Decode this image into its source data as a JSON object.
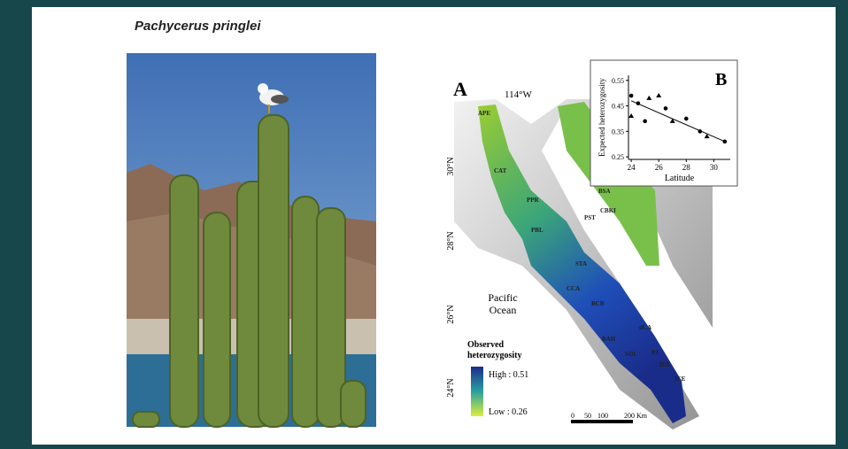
{
  "title": "Pachycerus pringlei",
  "map": {
    "panel": "A",
    "longitude": "114°W",
    "latitudes": [
      "30°N",
      "28°N",
      "26°N",
      "24°N"
    ],
    "ocean": "Pacific Ocean",
    "legend": {
      "title": "Observed heterozygosity",
      "high": "High : 0.51",
      "low": "Low : 0.26"
    },
    "scale": [
      "0",
      "50",
      "100",
      "200 Km"
    ],
    "sites": [
      "APE",
      "CAT",
      "PPR",
      "PBL",
      "BSA",
      "CBKI",
      "PST",
      "STA",
      "CCA",
      "BCB",
      "dCA",
      "BAH",
      "SOL",
      "PJ",
      "IES",
      "ICE"
    ]
  },
  "inset": {
    "panel": "B",
    "x_label": "Latitude",
    "y_label": "Expected heterozygosity",
    "xlim": [
      23.8,
      31.2
    ],
    "ylim": [
      0.24,
      0.57
    ],
    "xticks": [
      24,
      26,
      28,
      30
    ],
    "yticks": [
      0.25,
      0.35,
      0.45,
      0.55
    ],
    "x": [
      24,
      24,
      24.5,
      25,
      25.3,
      26,
      26.5,
      27,
      28,
      29,
      29.5,
      30.8
    ],
    "y": [
      0.49,
      0.41,
      0.46,
      0.39,
      0.48,
      0.49,
      0.44,
      0.39,
      0.4,
      0.35,
      0.33,
      0.31
    ],
    "trend_x": [
      24,
      30.8
    ],
    "trend_y": [
      0.47,
      0.31
    ]
  }
}
